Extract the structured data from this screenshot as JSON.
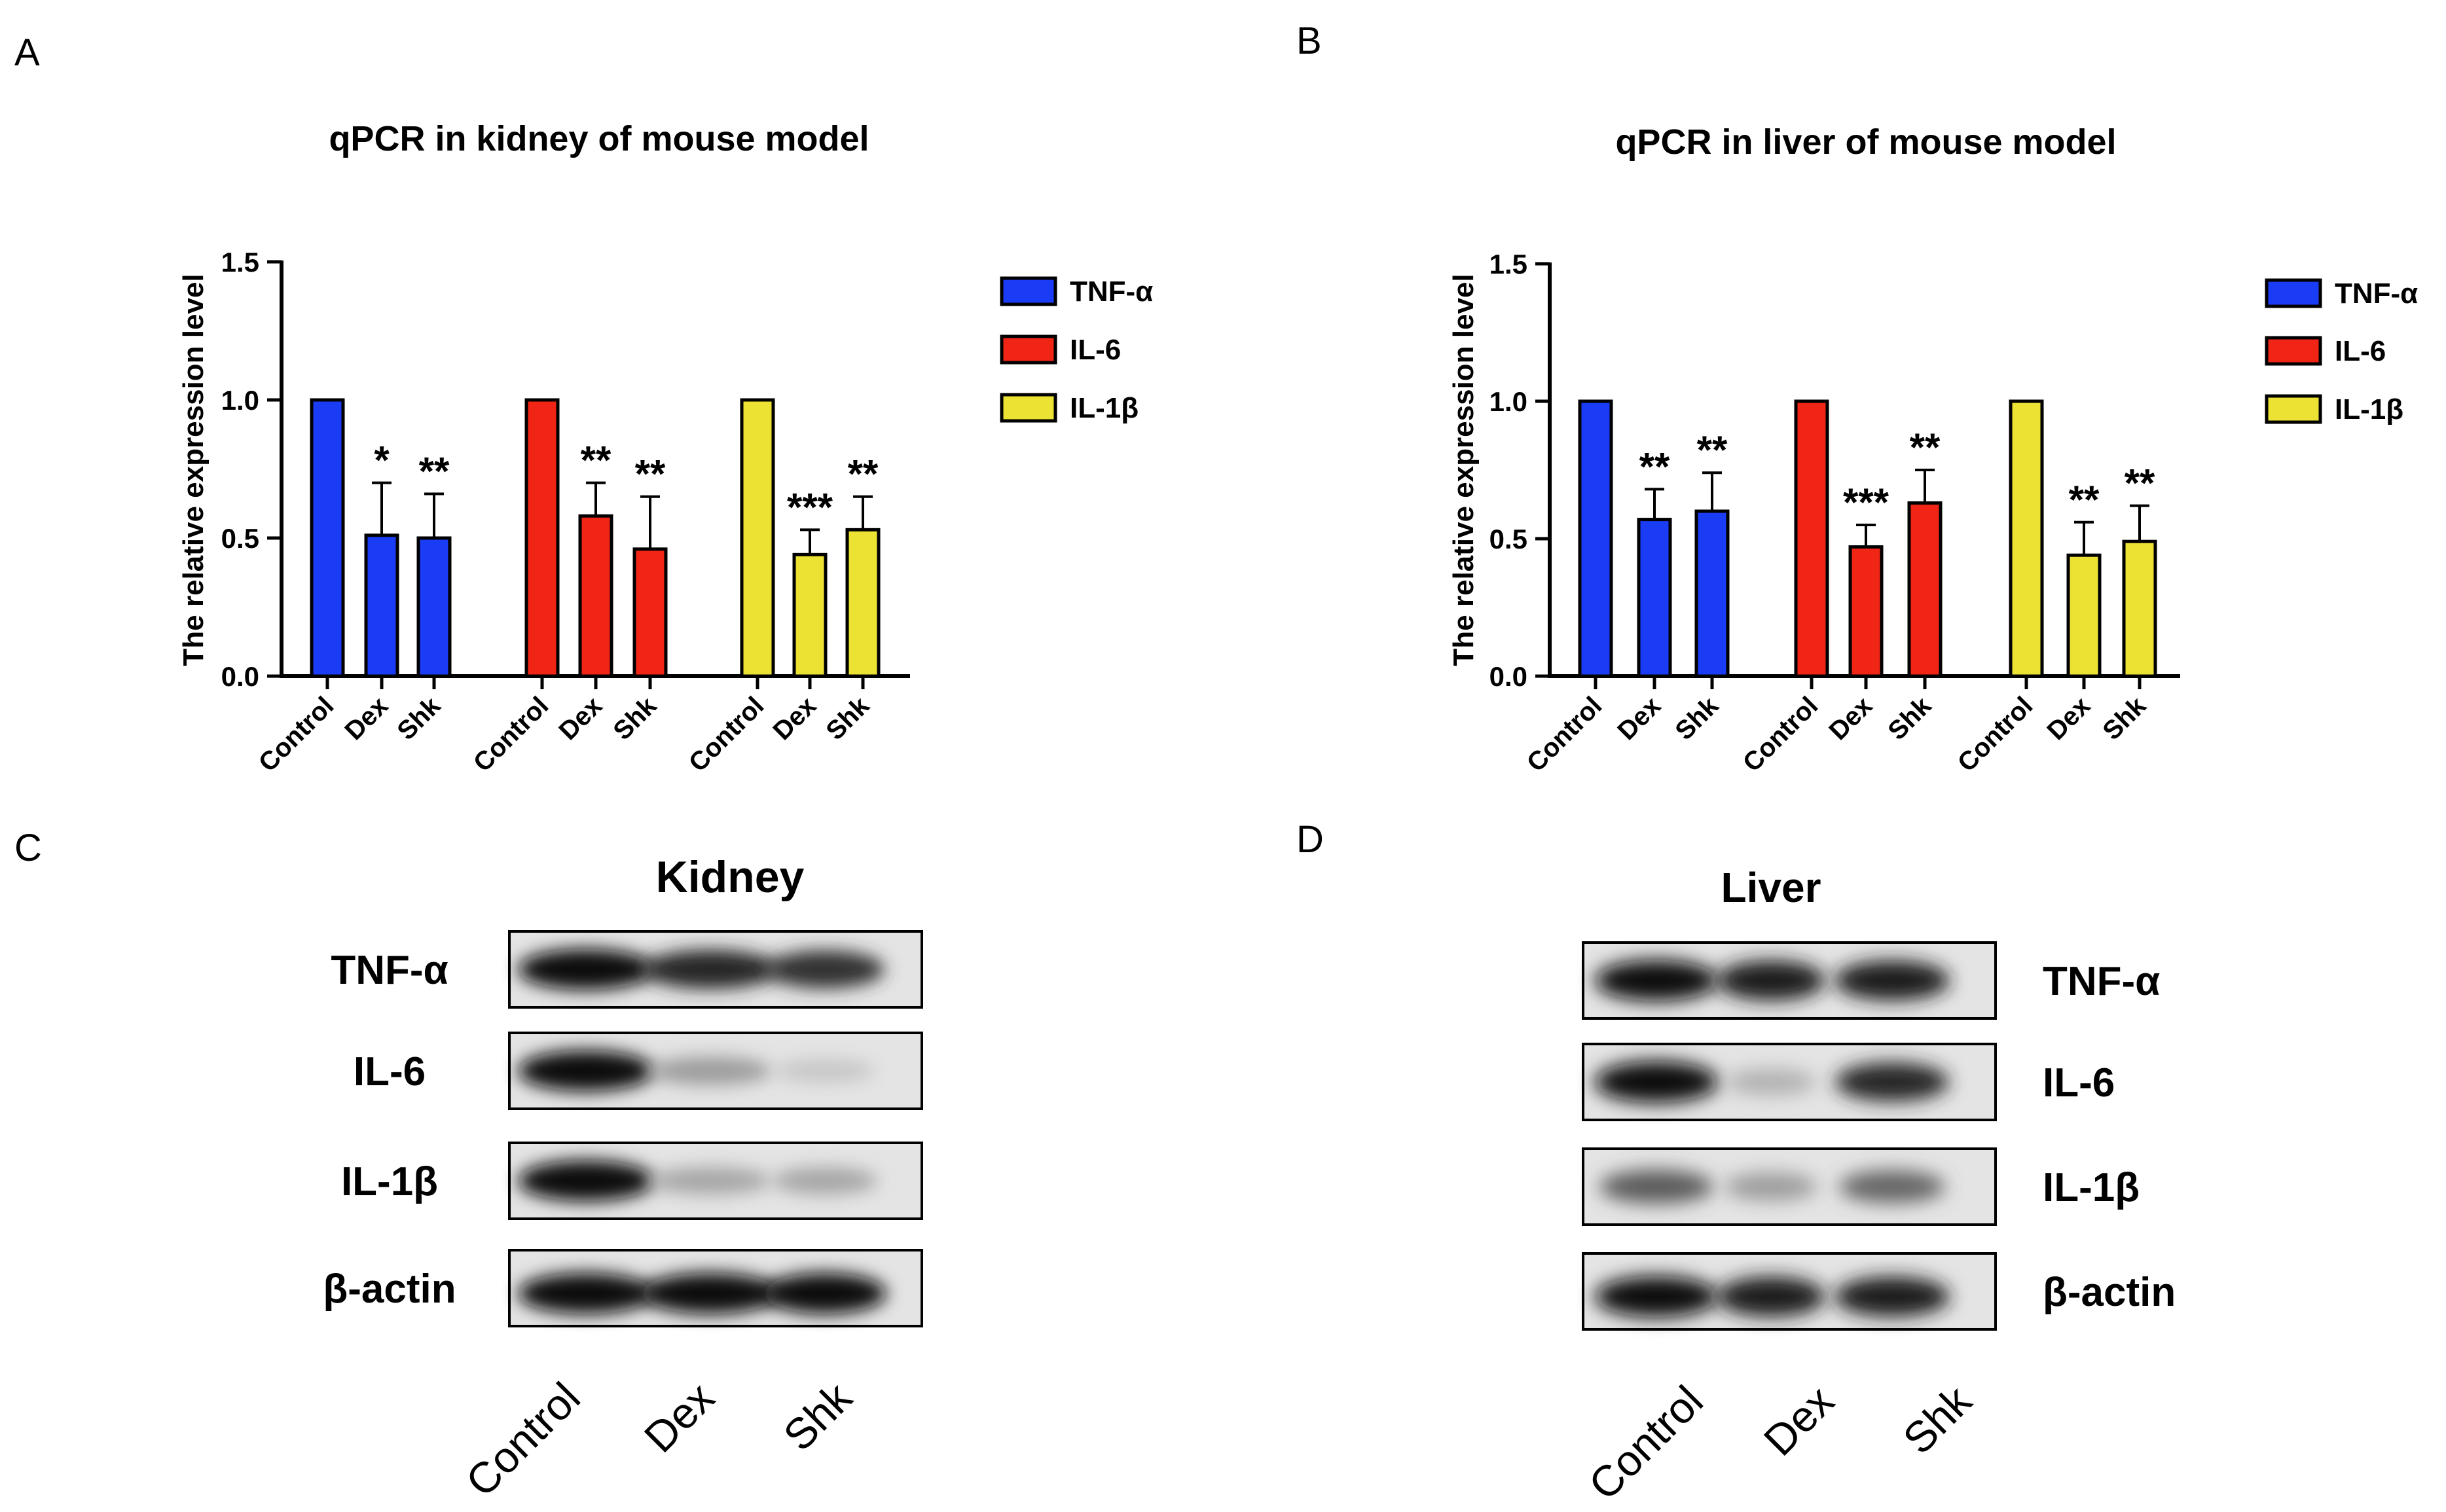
{
  "panel_labels": {
    "a": "A",
    "b": "B",
    "c": "C",
    "d": "D"
  },
  "colors": {
    "tnf": "#1a3cf5",
    "il6": "#f02516",
    "il1b": "#ebe234",
    "axis": "#000000"
  },
  "chart_data": [
    {
      "id": "kidney",
      "type": "bar",
      "title": "qPCR in kidney of mouse model",
      "ylabel": "The relative expression level",
      "ylim": [
        0,
        1.5
      ],
      "yticks": [
        "0.0",
        "0.5",
        "1.0",
        "1.5"
      ],
      "groups": [
        {
          "name": "TNF-α",
          "color": "#1a3cf5",
          "bars": [
            {
              "label": "Control",
              "value": 1.0,
              "err": 0,
              "sig": ""
            },
            {
              "label": "Dex",
              "value": 0.51,
              "err": 0.19,
              "sig": "*"
            },
            {
              "label": "Shk",
              "value": 0.5,
              "err": 0.16,
              "sig": "**"
            }
          ]
        },
        {
          "name": "IL-6",
          "color": "#f02516",
          "bars": [
            {
              "label": "Control",
              "value": 1.0,
              "err": 0,
              "sig": ""
            },
            {
              "label": "Dex",
              "value": 0.58,
              "err": 0.12,
              "sig": "**"
            },
            {
              "label": "Shk",
              "value": 0.46,
              "err": 0.19,
              "sig": "**"
            }
          ]
        },
        {
          "name": "IL-1β",
          "color": "#ebe234",
          "bars": [
            {
              "label": "Control",
              "value": 1.0,
              "err": 0,
              "sig": ""
            },
            {
              "label": "Dex",
              "value": 0.44,
              "err": 0.09,
              "sig": "***"
            },
            {
              "label": "Shk",
              "value": 0.53,
              "err": 0.12,
              "sig": "**"
            }
          ]
        }
      ],
      "legend": [
        "TNF-α",
        "IL-6",
        "IL-1β"
      ],
      "legend_position": "right"
    },
    {
      "id": "liver",
      "type": "bar",
      "title": "qPCR in liver of mouse model",
      "ylabel": "The relative expression level",
      "ylim": [
        0,
        1.5
      ],
      "yticks": [
        "0.0",
        "0.5",
        "1.0",
        "1.5"
      ],
      "groups": [
        {
          "name": "TNF-α",
          "color": "#1a3cf5",
          "bars": [
            {
              "label": "Control",
              "value": 1.0,
              "err": 0,
              "sig": ""
            },
            {
              "label": "Dex",
              "value": 0.57,
              "err": 0.11,
              "sig": "**"
            },
            {
              "label": "Shk",
              "value": 0.6,
              "err": 0.14,
              "sig": "**"
            }
          ]
        },
        {
          "name": "IL-6",
          "color": "#f02516",
          "bars": [
            {
              "label": "Control",
              "value": 1.0,
              "err": 0,
              "sig": ""
            },
            {
              "label": "Dex",
              "value": 0.47,
              "err": 0.08,
              "sig": "***"
            },
            {
              "label": "Shk",
              "value": 0.63,
              "err": 0.12,
              "sig": "**"
            }
          ]
        },
        {
          "name": "IL-1β",
          "color": "#ebe234",
          "bars": [
            {
              "label": "Control",
              "value": 1.0,
              "err": 0,
              "sig": ""
            },
            {
              "label": "Dex",
              "value": 0.44,
              "err": 0.12,
              "sig": "**"
            },
            {
              "label": "Shk",
              "value": 0.49,
              "err": 0.13,
              "sig": "**"
            }
          ]
        }
      ],
      "legend": [
        "TNF-α",
        "IL-6",
        "IL-1β"
      ],
      "legend_position": "right"
    }
  ],
  "blots": [
    {
      "id": "kidney",
      "title": "Kidney",
      "rows": [
        "TNF-α",
        "IL-6",
        "IL-1β",
        "β-actin"
      ],
      "lanes": [
        "Control",
        "Dex",
        "Shk"
      ],
      "band_intensity": [
        [
          0.95,
          0.85,
          0.8
        ],
        [
          0.95,
          0.3,
          0.1
        ],
        [
          0.95,
          0.25,
          0.25
        ],
        [
          0.95,
          0.95,
          0.95
        ]
      ]
    },
    {
      "id": "liver",
      "title": "Liver",
      "rows": [
        "TNF-α",
        "IL-6",
        "IL-1β",
        "β-actin"
      ],
      "lanes": [
        "Control",
        "Dex",
        "Shk"
      ],
      "band_intensity": [
        [
          0.95,
          0.9,
          0.9
        ],
        [
          0.98,
          0.2,
          0.85
        ],
        [
          0.6,
          0.3,
          0.55
        ],
        [
          0.95,
          0.9,
          0.9
        ]
      ]
    }
  ]
}
